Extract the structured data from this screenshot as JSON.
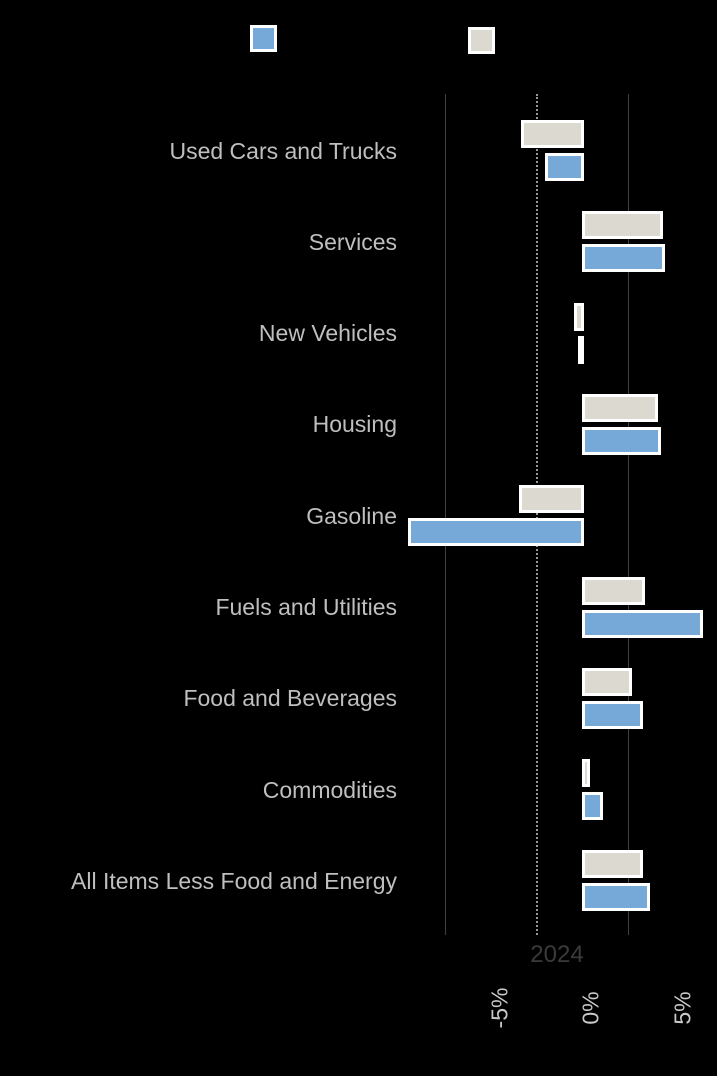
{
  "colors": {
    "background": "#000000",
    "bar_blue": "#76a8d8",
    "bar_gray": "#dcd9d1",
    "bar_stroke": "#ffffff",
    "category_label": "#bfbfbf",
    "tick_label": "#c9c9c9",
    "footer_label": "#3a3a3a",
    "solid_gridline": "#3f3f3f",
    "dotted_gridline": "#979797"
  },
  "legend": {
    "items": [
      {
        "id": "blue",
        "color": "#76a8d8",
        "label": ""
      },
      {
        "id": "gray",
        "color": "#dcd9d1",
        "label": ""
      }
    ]
  },
  "chart_data": {
    "type": "bar",
    "orientation": "horizontal",
    "title": "",
    "categories": [
      "Used Cars and Trucks",
      "Services",
      "New Vehicles",
      "Housing",
      "Gasoline",
      "Fuels and Utilities",
      "Food and Beverages",
      "Commodities",
      "All Items Less Food and Energy"
    ],
    "series": [
      {
        "name": "gray",
        "row": "top",
        "color": "#dcd9d1",
        "values": [
          -3.3,
          4.3,
          -0.4,
          4.0,
          -3.4,
          3.3,
          2.6,
          0.3,
          3.2
        ]
      },
      {
        "name": "blue",
        "row": "bottom",
        "color": "#76a8d8",
        "values": [
          -2.0,
          4.4,
          -0.2,
          4.2,
          -9.5,
          6.5,
          3.2,
          1.0,
          3.6
        ]
      }
    ],
    "unit": "percent",
    "x_axis": {
      "ticks": [
        {
          "label": "-5%",
          "value": -5
        },
        {
          "label": "0%",
          "value": 0
        },
        {
          "label": "5%",
          "value": 5
        }
      ]
    },
    "axis_footer_label": "2024",
    "xlim": [
      -10.5,
      7.3
    ],
    "grid": {
      "solid_line_values": [
        -7.5,
        2.5
      ],
      "dotted_line_value": -2.5
    },
    "legend_position": "top"
  }
}
